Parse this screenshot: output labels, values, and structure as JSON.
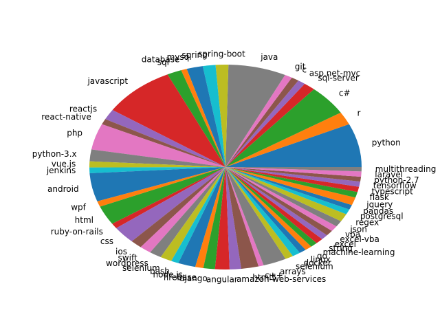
{
  "chart_data": {
    "type": "pie",
    "title": "",
    "colors": [
      "#1f77b4",
      "#ff7f0e",
      "#2ca02c",
      "#d62728",
      "#9467bd",
      "#8c564b",
      "#e377c2",
      "#7f7f7f",
      "#bcbd22",
      "#17becf"
    ],
    "start_angle_deg": 0,
    "direction": "counterclockwise",
    "slices": [
      {
        "label": "python",
        "value": 10.0
      },
      {
        "label": "r",
        "value": 3.0
      },
      {
        "label": "c#",
        "value": 7.0
      },
      {
        "label": "sql-server",
        "value": 2.0
      },
      {
        "label": "asp.net-mvc",
        "value": 1.3
      },
      {
        "label": "c",
        "value": 1.3
      },
      {
        "label": "git",
        "value": 1.3
      },
      {
        "label": "java",
        "value": 10.0
      },
      {
        "label": "spring-boot",
        "value": 2.2
      },
      {
        "label": "spring",
        "value": 2.2
      },
      {
        "label": "mysql",
        "value": 2.8
      },
      {
        "label": "database",
        "value": 1.0
      },
      {
        "label": "sql",
        "value": 2.5
      },
      {
        "label": "javascript",
        "value": 12.5
      },
      {
        "label": "reactjs",
        "value": 2.4
      },
      {
        "label": "react-native",
        "value": 1.3
      },
      {
        "label": "php",
        "value": 6.0
      },
      {
        "label": "python-3.x",
        "value": 2.7
      },
      {
        "label": "vue.js",
        "value": 1.4
      },
      {
        "label": "jenkins",
        "value": 1.3
      },
      {
        "label": "android",
        "value": 6.5
      },
      {
        "label": "wpf",
        "value": 1.3
      },
      {
        "label": "html",
        "value": 4.4
      },
      {
        "label": "ruby-on-rails",
        "value": 1.2
      },
      {
        "label": "css",
        "value": 4.0
      },
      {
        "label": "ios",
        "value": 2.0
      },
      {
        "label": "swift",
        "value": 2.0
      },
      {
        "label": "wordpress",
        "value": 2.1
      },
      {
        "label": "selenium",
        "value": 2.0
      },
      {
        "label": "bash",
        "value": 1.3
      },
      {
        "label": "node.js",
        "value": 3.0
      },
      {
        "label": "firebase",
        "value": 1.4
      },
      {
        "label": "django",
        "value": 2.0
      },
      {
        "label": "angular",
        "value": 2.5
      },
      {
        "label": "amazon-web-services",
        "value": 2.0
      },
      {
        "label": "html5",
        "value": 3.0
      },
      {
        "label": "c++",
        "value": 0.9
      },
      {
        "label": "arrays",
        "value": 4.0
      },
      {
        "label": "selenium",
        "value": 1.4
      },
      {
        "label": "docker",
        "value": 1.4
      },
      {
        "label": "linux",
        "value": 1.2
      },
      {
        "label": "go",
        "value": 1.2
      },
      {
        "label": "machine-learning",
        "value": 1.2
      },
      {
        "label": "string",
        "value": 1.3
      },
      {
        "label": "excel",
        "value": 1.2
      },
      {
        "label": "excel-vba",
        "value": 1.3
      },
      {
        "label": "vba",
        "value": 1.3
      },
      {
        "label": "json",
        "value": 1.4
      },
      {
        "label": "regex",
        "value": 1.8
      },
      {
        "label": "postgresql",
        "value": 1.2
      },
      {
        "label": "pandas",
        "value": 1.1
      },
      {
        "label": "jquery",
        "value": 1.8
      },
      {
        "label": "flask",
        "value": 1.3
      },
      {
        "label": "typescript",
        "value": 1.2
      },
      {
        "label": "tensorflow",
        "value": 1.2
      },
      {
        "label": "python-2.7",
        "value": 1.1
      },
      {
        "label": "laravel",
        "value": 1.2
      },
      {
        "label": "multithreading",
        "value": 1.0
      }
    ]
  }
}
